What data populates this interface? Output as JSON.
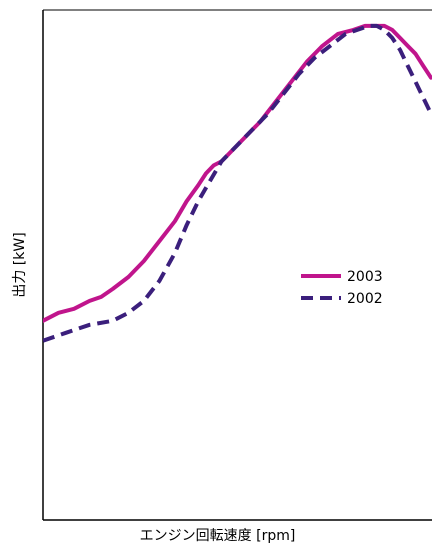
{
  "chart_data": {
    "type": "line",
    "xlabel": "エンジン回転速度 [rpm]",
    "ylabel": "出力 [kW]",
    "xticks": "none",
    "yticks": "none",
    "grid": false,
    "legend_position": "middle-right",
    "xlim": [
      0,
      100
    ],
    "ylim": [
      0,
      100
    ],
    "series": [
      {
        "name": "2003",
        "color": "#c0158c",
        "style": "solid",
        "x": [
          0,
          4,
          8,
          12,
          15,
          18,
          22,
          26,
          30,
          34,
          37,
          40,
          42,
          44,
          46,
          49,
          52,
          56,
          60,
          64,
          68,
          72,
          76,
          80,
          83,
          86,
          88,
          90,
          92,
          94,
          96,
          98,
          100
        ],
        "y": [
          28,
          30,
          31,
          33,
          34,
          36,
          39,
          43,
          48,
          53,
          58,
          62,
          65,
          67,
          68,
          71,
          74,
          78,
          83,
          88,
          93,
          97,
          100,
          101,
          102,
          102,
          102,
          101,
          99,
          97,
          95,
          92,
          89
        ]
      },
      {
        "name": "2002",
        "color": "#3b1f7c",
        "style": "dashed",
        "x": [
          0,
          6,
          12,
          18,
          22,
          26,
          30,
          34,
          37,
          40,
          43,
          46,
          50,
          54,
          58,
          62,
          66,
          70,
          74,
          78,
          81,
          84,
          86,
          88,
          90,
          92,
          94,
          96,
          98,
          100
        ],
        "y": [
          23,
          25,
          27,
          28,
          30,
          33,
          38,
          45,
          52,
          58,
          63,
          68,
          72,
          76,
          80,
          85,
          90,
          94,
          97,
          100,
          101,
          102,
          102,
          101,
          99,
          96,
          92,
          88,
          84,
          80
        ]
      }
    ]
  }
}
